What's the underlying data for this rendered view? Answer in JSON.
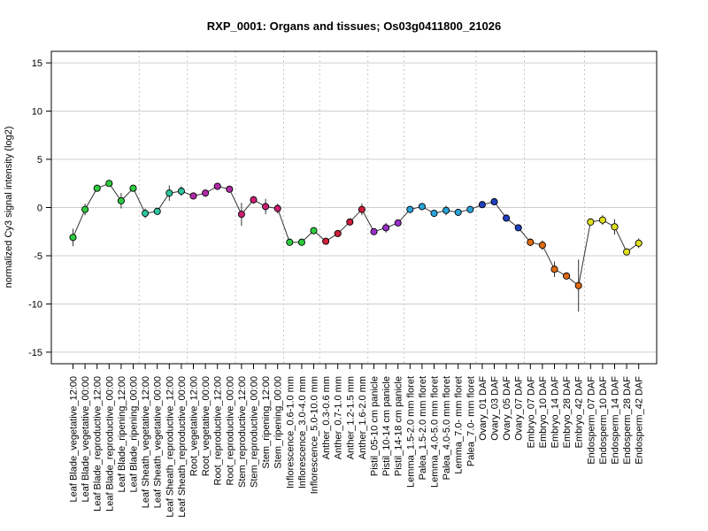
{
  "chart_data": {
    "type": "line",
    "title": "RXP_0001: Organs and tissues; Os03g0411800_21026",
    "ylabel": "normalized Cy3 signal intensity (log2)",
    "xlabel": "",
    "ylim": [
      -16.2,
      16.2
    ],
    "yticks": [
      -15,
      -10,
      -5,
      0,
      5,
      10,
      15
    ],
    "grid": true,
    "categories": [
      "Leaf Blade_vegetative_12:00",
      "Leaf Blade_vegetative_00:00",
      "Leaf Blade_reproductive_12:00",
      "Leaf Blade_reproductive_00:00",
      "Leaf Blade_ripening_12:00",
      "Leaf Blade_ripening_00:00",
      "Leaf Sheath_vegetative_12:00",
      "Leaf Sheath_vegetative_00:00",
      "Leaf Sheath_reproductive_12:00",
      "Leaf Sheath_reproductive_00:00",
      "Root_vegetative_12:00",
      "Root_vegetative_00:00",
      "Root_reproductive_12:00",
      "Root_reproductive_00:00",
      "Stem_reproductive_12:00",
      "Stem_reproductive_00:00",
      "Stem_ripening_12:00",
      "Stem_ripening_00:00",
      "Inflorescence_0.6-1.0 mm",
      "Inflorescence_3.0-4.0 mm",
      "Inflorescence_5.0-10.0 mm",
      "Anther_0.3-0.6 mm",
      "Anther_0.7-1.0 mm",
      "Anther_1.2-1.5 mm",
      "Anther_1.6-2.0 mm",
      "Pistil_05-10 cm panicle",
      "Pistil_10-14 cm panicle",
      "Pistil_14-18 cm panicle",
      "Lemma_1.5-2.0 mm floret",
      "Palea_1.5-2.0 mm floret",
      "Lemma_4.0-5.0 mm floret",
      "Palea_4.0-5.0 mm floret",
      "Lemma_7.0- mm floret",
      "Palea_7.0- mm floret",
      "Ovary_01 DAF",
      "Ovary_03 DAF",
      "Ovary_05 DAF",
      "Ovary_07 DAF",
      "Embryo_07 DAF",
      "Embryo_10 DAF",
      "Embryo_14 DAF",
      "Embryo_28 DAF",
      "Embryo_42 DAF",
      "Endosperm_07 DAF",
      "Endosperm_10 DAF",
      "Endosperm_14 DAF",
      "Endosperm_28 DAF",
      "Endosperm_42 DAF"
    ],
    "values": [
      -3.1,
      -0.2,
      2.0,
      2.5,
      0.7,
      2.0,
      -0.6,
      -0.4,
      1.5,
      1.7,
      1.2,
      1.5,
      2.2,
      1.9,
      -0.7,
      0.8,
      0.1,
      -0.1,
      -3.6,
      -3.6,
      -2.4,
      -3.5,
      -2.7,
      -1.5,
      -0.2,
      -2.5,
      -2.1,
      -1.6,
      -0.2,
      0.1,
      -0.6,
      -0.3,
      -0.5,
      -0.2,
      0.3,
      0.6,
      -1.1,
      -2.1,
      -3.6,
      -3.9,
      -6.4,
      -7.1,
      -8.1,
      -1.5,
      -1.3,
      -2.0,
      -4.6,
      -3.7
    ],
    "errors": [
      0.9,
      0.6,
      0.2,
      0.2,
      0.8,
      0.2,
      0.5,
      0.3,
      0.8,
      0.5,
      0.2,
      0.2,
      0.2,
      0.2,
      1.2,
      0.4,
      0.8,
      0.5,
      0.2,
      0.2,
      0.2,
      0.3,
      0.2,
      0.2,
      0.6,
      0.3,
      0.5,
      0.3,
      0.3,
      0.3,
      0.3,
      0.5,
      0.2,
      0.2,
      0.2,
      0.2,
      0.2,
      0.3,
      0.4,
      0.5,
      0.8,
      0.3,
      2.7,
      0.2,
      0.5,
      0.8,
      0.2,
      0.5
    ],
    "group_boundaries_after": [
      5,
      9,
      13,
      17,
      20,
      24,
      27,
      33,
      37,
      42
    ],
    "point_colors": [
      "#2ecc40",
      "#2ecc40",
      "#2ecc40",
      "#2ecc40",
      "#2ecc40",
      "#2ecc40",
      "#2ec4a0",
      "#2ec4a0",
      "#2ec4a0",
      "#2ec4a0",
      "#b12aa6",
      "#b12aa6",
      "#b12aa6",
      "#b12aa6",
      "#cc1f73",
      "#cc1f73",
      "#cc1f73",
      "#cc1f73",
      "#2ecc40",
      "#2ecc40",
      "#2ecc40",
      "#cc1f3a",
      "#cc1f3a",
      "#cc1f3a",
      "#cc1f3a",
      "#9b30c8",
      "#9b30c8",
      "#9b30c8",
      "#29a3d9",
      "#29a3d9",
      "#29a3d9",
      "#29a3d9",
      "#29a3d9",
      "#29a3d9",
      "#1f3fbf",
      "#1f3fbf",
      "#1f3fbf",
      "#1f3fbf",
      "#e06a10",
      "#e06a10",
      "#e06a10",
      "#e06a10",
      "#e06a10",
      "#e0e020",
      "#e0e020",
      "#e0e020",
      "#e0e020",
      "#e0e020"
    ]
  }
}
